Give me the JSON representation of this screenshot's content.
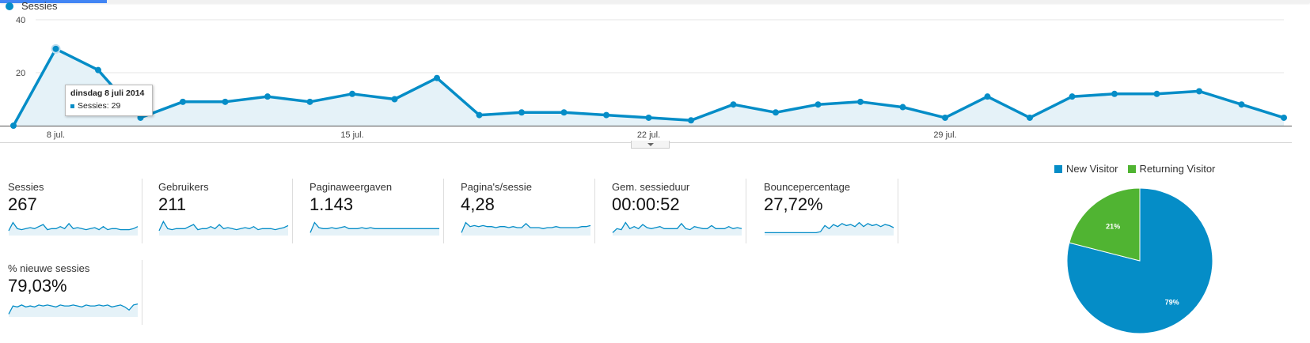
{
  "colors": {
    "accent": "#058dc7",
    "area_fill": "#e5f2f8",
    "new_visitor": "#058dc7",
    "returning_visitor": "#50b432",
    "grid": "#e6e6e6"
  },
  "main_chart": {
    "legend_label": "Sessies",
    "y_ticks": [
      "40",
      "20"
    ],
    "x_ticks": [
      "8 jul.",
      "15 jul.",
      "22 jul.",
      "29 jul."
    ],
    "tooltip": {
      "title": "dinsdag 8 juli 2014",
      "row": "Sessies: 29"
    }
  },
  "chart_data": [
    {
      "type": "area",
      "series": [
        {
          "name": "Sessies",
          "values": [
            0,
            29,
            21,
            3,
            9,
            9,
            11,
            9,
            12,
            10,
            18,
            4,
            5,
            5,
            4,
            3,
            2,
            8,
            5,
            8,
            9,
            7,
            3,
            11,
            3,
            11,
            12,
            12,
            13,
            8,
            3
          ]
        }
      ],
      "x_tick_labels": [
        "8 jul.",
        "15 jul.",
        "22 jul.",
        "29 jul."
      ],
      "ylim": [
        0,
        40
      ],
      "y_ticks": [
        20,
        40
      ],
      "grid": true,
      "highlighted_point_index": 1
    },
    {
      "type": "pie",
      "categories": [
        "New Visitor",
        "Returning Visitor"
      ],
      "values": [
        79,
        21
      ],
      "labels": [
        "79%",
        "21%"
      ],
      "legend_position": "top"
    }
  ],
  "metrics": [
    {
      "label": "Sessies",
      "value": "267",
      "spark": [
        10,
        2,
        8,
        9,
        8,
        7,
        8,
        6,
        4,
        9,
        8,
        8,
        6,
        8,
        3,
        8,
        7,
        8,
        9,
        8,
        7,
        9,
        6,
        9,
        8,
        8,
        9,
        9,
        9,
        8,
        6
      ]
    },
    {
      "label": "Gebruikers",
      "value": "211",
      "spark": [
        10,
        1,
        8,
        9,
        8,
        8,
        8,
        6,
        4,
        9,
        8,
        8,
        6,
        8,
        4,
        8,
        7,
        8,
        9,
        8,
        7,
        8,
        6,
        9,
        8,
        8,
        8,
        9,
        8,
        7,
        5
      ]
    },
    {
      "label": "Paginaweergaven",
      "value": "1.143",
      "spark": [
        12,
        2,
        7,
        8,
        8,
        7,
        8,
        7,
        6,
        8,
        8,
        8,
        7,
        8,
        7,
        8,
        8,
        8,
        8,
        8,
        8,
        8,
        8,
        8,
        8,
        8,
        8,
        8,
        8,
        8,
        8
      ]
    },
    {
      "label": "Pagina's/sessie",
      "value": "4,28",
      "spark": [
        12,
        2,
        6,
        5,
        6,
        5,
        6,
        6,
        7,
        6,
        6,
        7,
        6,
        7,
        7,
        3,
        7,
        7,
        7,
        8,
        7,
        7,
        6,
        7,
        7,
        7,
        7,
        7,
        6,
        6,
        5
      ]
    },
    {
      "label": "Gem. sessieduur",
      "value": "00:00:52",
      "spark": [
        12,
        8,
        9,
        2,
        8,
        6,
        8,
        4,
        7,
        8,
        7,
        6,
        8,
        8,
        8,
        8,
        3,
        8,
        9,
        6,
        7,
        8,
        8,
        5,
        8,
        8,
        8,
        6,
        8,
        7,
        8
      ]
    },
    {
      "label": "Bouncepercentage",
      "value": "27,72%",
      "spark": [
        12,
        12,
        12,
        12,
        12,
        12,
        12,
        12,
        12,
        12,
        12,
        12,
        12,
        11,
        5,
        8,
        4,
        6,
        3,
        5,
        4,
        6,
        2,
        6,
        3,
        5,
        4,
        6,
        4,
        5,
        7
      ]
    },
    {
      "label": "% nieuwe sessies",
      "value": "79,03%",
      "spark": [
        12,
        4,
        5,
        3,
        5,
        4,
        5,
        3,
        4,
        3,
        4,
        5,
        3,
        4,
        4,
        3,
        4,
        5,
        3,
        4,
        4,
        3,
        4,
        3,
        5,
        4,
        3,
        5,
        8,
        3,
        2
      ]
    }
  ],
  "pie": {
    "legend": [
      {
        "label": "New Visitor"
      },
      {
        "label": "Returning Visitor"
      }
    ],
    "slice_labels": [
      "79%",
      "21%"
    ]
  }
}
